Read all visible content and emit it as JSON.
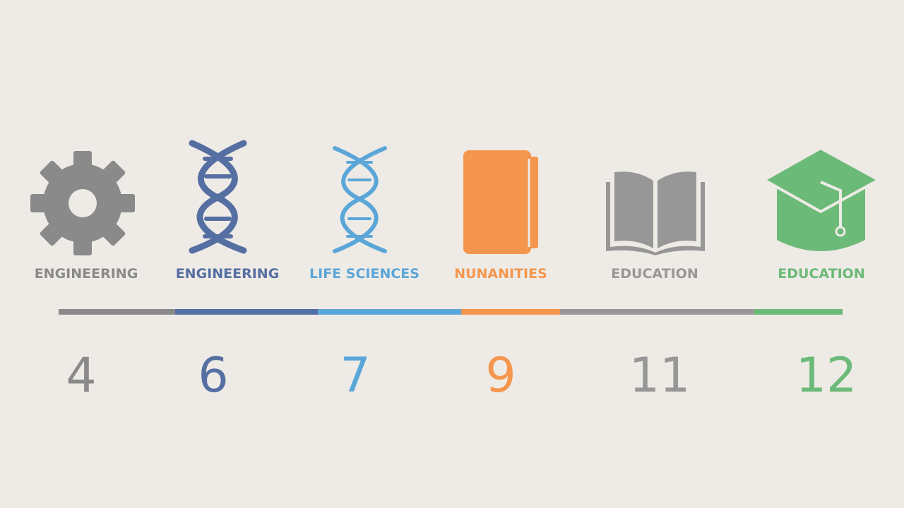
{
  "items": [
    {
      "label": "ENGINEERING",
      "number": "4",
      "color": "#8a8a8a"
    },
    {
      "label": "ENGINEERING",
      "number": "6",
      "color": "#566fa2"
    },
    {
      "label": "LIFE SCIENCES",
      "number": "7",
      "color": "#5ba6d8"
    },
    {
      "label": "NUNANITIES",
      "number": "9",
      "color": "#f5964e"
    },
    {
      "label": "EDUCATION",
      "number": "11",
      "color": "#979797"
    },
    {
      "label": "EDUCATION",
      "number": "12",
      "color": "#6cba78"
    }
  ]
}
